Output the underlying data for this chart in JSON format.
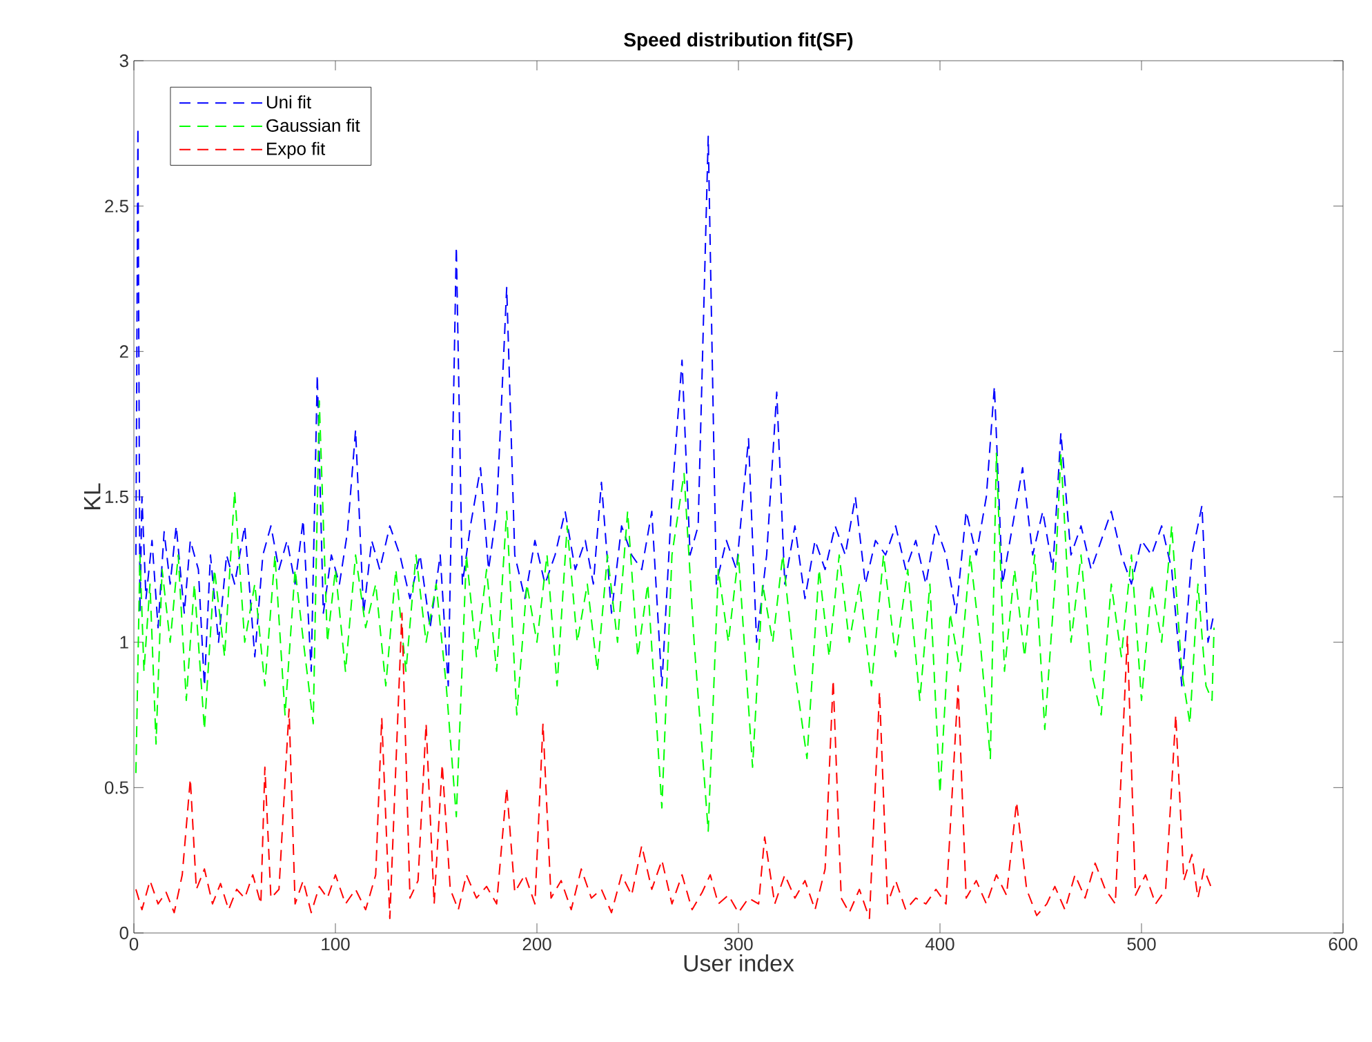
{
  "chart_data": {
    "type": "line",
    "title": "Speed distribution fit(SF)",
    "xlabel": "User index",
    "ylabel": "KL",
    "xlim": [
      0,
      600
    ],
    "ylim": [
      0,
      3
    ],
    "xticks": [
      0,
      100,
      200,
      300,
      400,
      500,
      600
    ],
    "yticks": [
      0,
      0.5,
      1,
      1.5,
      2,
      2.5,
      3
    ],
    "grid": false,
    "legend": "top left",
    "line_style": "dashed",
    "marker": "none",
    "series": [
      {
        "name": "Uni fit",
        "color": "#0000ff",
        "x": [
          1,
          2,
          3,
          4,
          6,
          9,
          12,
          15,
          18,
          21,
          25,
          28,
          32,
          35,
          38,
          42,
          46,
          50,
          55,
          60,
          64,
          68,
          72,
          76,
          80,
          84,
          88,
          91,
          94,
          98,
          102,
          106,
          110,
          114,
          118,
          122,
          127,
          132,
          137,
          142,
          147,
          152,
          156,
          160,
          163,
          167,
          172,
          176,
          180,
          185,
          189,
          194,
          199,
          204,
          209,
          214,
          219,
          224,
          228,
          232,
          237,
          242,
          247,
          252,
          257,
          262,
          267,
          272,
          276,
          280,
          285,
          289,
          294,
          299,
          305,
          309,
          314,
          319,
          323,
          328,
          333,
          338,
          343,
          348,
          353,
          358,
          363,
          368,
          373,
          378,
          383,
          388,
          393,
          398,
          403,
          408,
          413,
          418,
          423,
          427,
          431,
          436,
          441,
          446,
          451,
          456,
          460,
          465,
          470,
          475,
          480,
          485,
          490,
          495,
          500,
          505,
          510,
          515,
          520,
          525,
          530,
          533,
          536
        ],
        "values": [
          1.3,
          2.77,
          1.1,
          1.5,
          1.15,
          1.35,
          1.05,
          1.38,
          1.2,
          1.4,
          1.1,
          1.35,
          1.25,
          0.85,
          1.3,
          1.0,
          1.3,
          1.2,
          1.4,
          0.95,
          1.3,
          1.4,
          1.25,
          1.35,
          1.2,
          1.42,
          0.9,
          1.92,
          1.1,
          1.3,
          1.2,
          1.38,
          1.73,
          1.1,
          1.35,
          1.25,
          1.4,
          1.3,
          1.15,
          1.3,
          1.05,
          1.3,
          0.85,
          2.36,
          1.2,
          1.4,
          1.6,
          1.25,
          1.45,
          2.22,
          1.3,
          1.15,
          1.35,
          1.2,
          1.3,
          1.45,
          1.25,
          1.35,
          1.2,
          1.55,
          1.1,
          1.4,
          1.3,
          1.25,
          1.45,
          0.85,
          1.5,
          1.97,
          1.3,
          1.4,
          2.74,
          1.2,
          1.35,
          1.25,
          1.7,
          1.0,
          1.3,
          1.86,
          1.2,
          1.4,
          1.15,
          1.35,
          1.25,
          1.4,
          1.3,
          1.5,
          1.2,
          1.35,
          1.3,
          1.4,
          1.25,
          1.35,
          1.2,
          1.4,
          1.3,
          1.1,
          1.45,
          1.3,
          1.5,
          1.88,
          1.2,
          1.4,
          1.6,
          1.3,
          1.45,
          1.25,
          1.72,
          1.3,
          1.4,
          1.25,
          1.35,
          1.45,
          1.3,
          1.2,
          1.35,
          1.3,
          1.4,
          1.25,
          0.85,
          1.3,
          1.47,
          1.0,
          1.1
        ]
      },
      {
        "name": "Gaussian fit",
        "color": "#00ff00",
        "x": [
          1,
          3,
          5,
          8,
          11,
          14,
          18,
          22,
          26,
          30,
          35,
          40,
          45,
          50,
          55,
          60,
          65,
          70,
          75,
          80,
          85,
          89,
          92,
          96,
          100,
          105,
          110,
          115,
          120,
          125,
          130,
          135,
          140,
          145,
          150,
          155,
          160,
          165,
          170,
          175,
          180,
          185,
          190,
          195,
          200,
          205,
          210,
          215,
          220,
          225,
          230,
          235,
          240,
          245,
          250,
          255,
          262,
          267,
          273,
          278,
          285,
          290,
          295,
          300,
          307,
          312,
          317,
          322,
          328,
          334,
          340,
          345,
          350,
          355,
          360,
          366,
          372,
          378,
          384,
          390,
          395,
          400,
          405,
          410,
          415,
          420,
          425,
          428,
          432,
          437,
          442,
          447,
          452,
          457,
          460,
          465,
          470,
          475,
          480,
          485,
          490,
          495,
          500,
          505,
          510,
          515,
          520,
          524,
          528,
          532,
          535,
          536
        ],
        "values": [
          0.55,
          1.3,
          0.9,
          1.2,
          0.65,
          1.25,
          1.0,
          1.3,
          0.8,
          1.2,
          0.7,
          1.25,
          0.95,
          1.52,
          1.0,
          1.2,
          0.85,
          1.3,
          0.75,
          1.25,
          0.95,
          0.72,
          1.83,
          1.0,
          1.25,
          0.9,
          1.3,
          1.05,
          1.2,
          0.85,
          1.25,
          0.9,
          1.3,
          1.0,
          1.2,
          0.85,
          0.4,
          1.3,
          0.95,
          1.25,
          0.9,
          1.45,
          0.75,
          1.2,
          1.0,
          1.3,
          0.85,
          1.4,
          1.0,
          1.2,
          0.9,
          1.3,
          1.0,
          1.45,
          0.95,
          1.2,
          0.43,
          1.3,
          1.58,
          1.0,
          0.35,
          1.25,
          1.0,
          1.3,
          0.57,
          1.2,
          1.0,
          1.3,
          0.9,
          0.6,
          1.25,
          0.95,
          1.3,
          1.0,
          1.2,
          0.85,
          1.3,
          0.95,
          1.25,
          0.8,
          1.2,
          0.48,
          1.1,
          0.9,
          1.3,
          1.0,
          0.6,
          1.65,
          0.9,
          1.25,
          0.95,
          1.3,
          0.7,
          1.2,
          1.65,
          1.0,
          1.3,
          0.9,
          0.75,
          1.2,
          0.95,
          1.3,
          0.8,
          1.2,
          1.0,
          1.4,
          0.9,
          0.72,
          1.2,
          0.85,
          0.8,
          1.05
        ]
      },
      {
        "name": "Expo fit",
        "color": "#ff0000",
        "x": [
          1,
          4,
          8,
          12,
          16,
          20,
          24,
          28,
          31,
          35,
          39,
          43,
          47,
          51,
          55,
          59,
          63,
          65,
          68,
          72,
          77,
          80,
          84,
          88,
          92,
          96,
          100,
          105,
          110,
          115,
          120,
          123,
          127,
          133,
          137,
          141,
          145,
          149,
          153,
          157,
          161,
          165,
          170,
          175,
          180,
          185,
          189,
          194,
          199,
          203,
          207,
          212,
          217,
          222,
          227,
          232,
          237,
          242,
          247,
          252,
          257,
          262,
          267,
          272,
          277,
          282,
          286,
          290,
          295,
          300,
          305,
          310,
          313,
          318,
          323,
          328,
          333,
          338,
          343,
          347,
          351,
          355,
          360,
          365,
          370,
          374,
          378,
          383,
          388,
          393,
          398,
          403,
          409,
          413,
          418,
          423,
          428,
          433,
          438,
          443,
          448,
          453,
          457,
          462,
          467,
          472,
          477,
          482,
          487,
          493,
          497,
          502,
          507,
          512,
          517,
          521,
          525,
          528,
          531,
          535
        ],
        "values": [
          0.15,
          0.08,
          0.18,
          0.1,
          0.14,
          0.07,
          0.2,
          0.53,
          0.15,
          0.22,
          0.1,
          0.17,
          0.08,
          0.15,
          0.12,
          0.2,
          0.1,
          0.57,
          0.12,
          0.15,
          0.77,
          0.1,
          0.18,
          0.07,
          0.16,
          0.12,
          0.2,
          0.1,
          0.15,
          0.08,
          0.2,
          0.74,
          0.05,
          1.1,
          0.12,
          0.18,
          0.72,
          0.1,
          0.58,
          0.15,
          0.08,
          0.2,
          0.12,
          0.16,
          0.1,
          0.5,
          0.14,
          0.2,
          0.1,
          0.72,
          0.12,
          0.18,
          0.08,
          0.22,
          0.12,
          0.15,
          0.07,
          0.2,
          0.13,
          0.3,
          0.15,
          0.25,
          0.1,
          0.2,
          0.08,
          0.14,
          0.2,
          0.1,
          0.13,
          0.07,
          0.12,
          0.1,
          0.33,
          0.1,
          0.2,
          0.12,
          0.18,
          0.08,
          0.22,
          0.87,
          0.12,
          0.07,
          0.15,
          0.05,
          0.83,
          0.1,
          0.18,
          0.08,
          0.12,
          0.1,
          0.15,
          0.1,
          0.85,
          0.12,
          0.18,
          0.1,
          0.2,
          0.13,
          0.45,
          0.15,
          0.06,
          0.1,
          0.16,
          0.08,
          0.2,
          0.12,
          0.24,
          0.15,
          0.1,
          1.02,
          0.13,
          0.2,
          0.1,
          0.15,
          0.75,
          0.18,
          0.27,
          0.12,
          0.22,
          0.15
        ]
      }
    ]
  }
}
